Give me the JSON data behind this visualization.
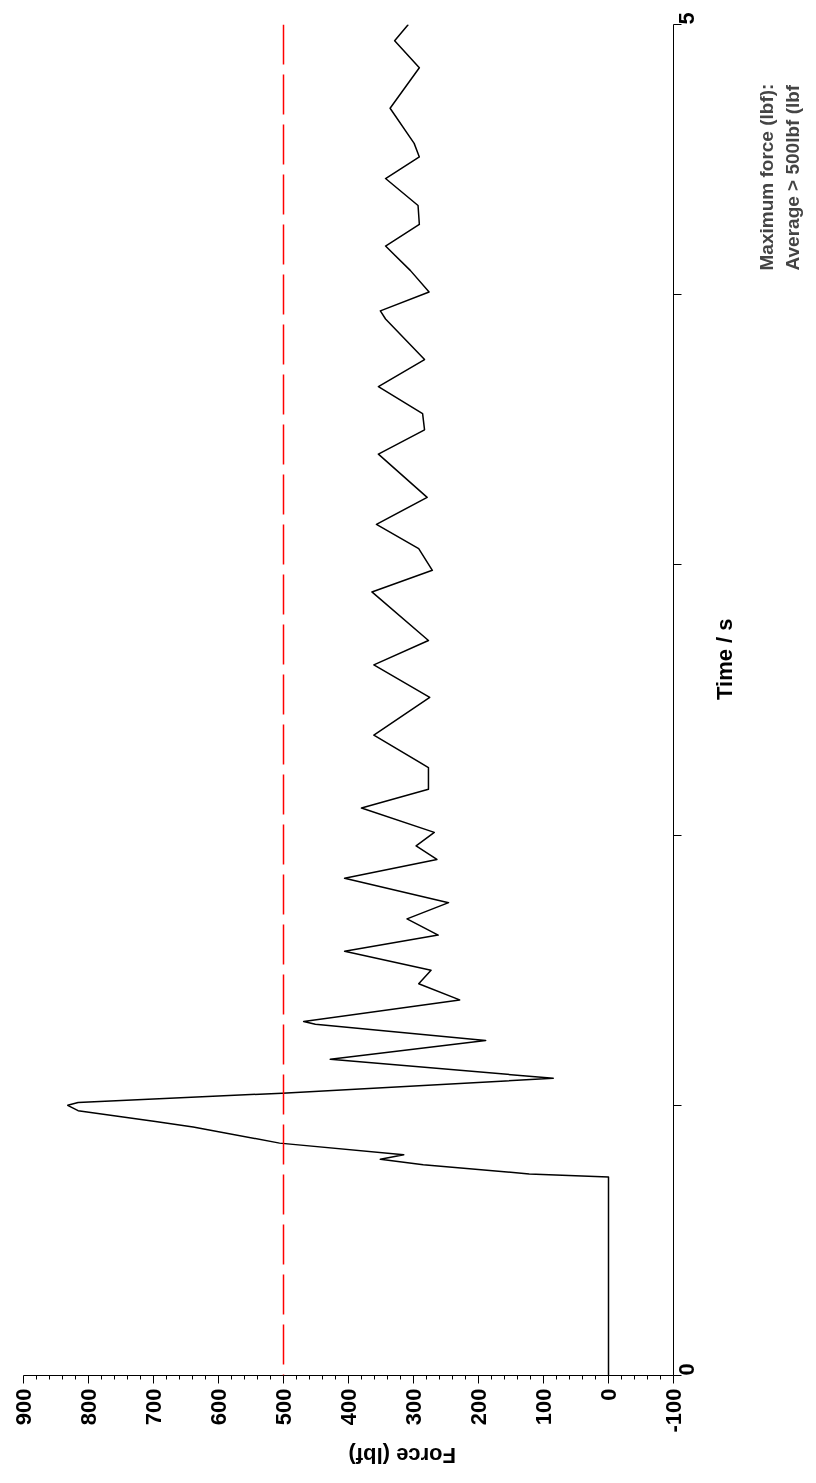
{
  "chart_data": {
    "type": "line",
    "xlabel": "Force (lbf)",
    "ylabel": "Time / s",
    "annotations": [
      "Maximum force (lbf):",
      "Average > 500lbf (lbf"
    ],
    "series": [
      {
        "color": "#000000",
        "x": [
          0,
          0,
          122,
          285,
          351,
          315,
          506,
          639,
          697,
          816,
          832,
          816,
          502,
          85,
          428,
          189,
          451,
          469,
          229,
          292,
          273,
          406,
          262,
          310,
          246,
          406,
          264,
          296,
          268,
          380,
          277,
          277,
          361,
          275,
          361,
          277,
          364,
          271,
          292,
          357,
          279,
          354,
          283,
          286,
          354,
          283,
          343,
          351,
          276,
          305,
          343,
          291,
          293,
          343,
          291,
          299,
          336,
          291,
          329,
          308
        ],
        "values": [
          0,
          0.735,
          0.746,
          0.78,
          0.8,
          0.817,
          0.86,
          0.92,
          0.94,
          0.98,
          1.0,
          1.01,
          1.045,
          1.1,
          1.17,
          1.24,
          1.3,
          1.31,
          1.39,
          1.45,
          1.5,
          1.57,
          1.63,
          1.69,
          1.75,
          1.84,
          1.91,
          1.96,
          2.01,
          2.1,
          2.17,
          2.25,
          2.37,
          2.51,
          2.63,
          2.72,
          2.9,
          2.98,
          3.06,
          3.15,
          3.25,
          3.41,
          3.5,
          3.56,
          3.66,
          3.76,
          3.91,
          3.94,
          4.01,
          4.09,
          4.18,
          4.26,
          4.33,
          4.43,
          4.51,
          4.56,
          4.69,
          4.84,
          4.94,
          5.0
        ]
      }
    ],
    "ylim": [
      0,
      5
    ],
    "yticks": [
      0,
      {
        "value": 1,
        "label": null
      },
      {
        "value": 2,
        "label": null
      },
      {
        "value": 3,
        "label": null
      },
      {
        "value": 4,
        "label": null
      },
      5
    ],
    "xlim": [
      900,
      -100
    ],
    "xticks": [
      -100,
      0,
      100,
      200,
      300,
      400,
      500,
      600,
      700,
      800,
      900
    ],
    "ref_lines": [
      {
        "axis": "x",
        "value": 500,
        "color": "#ff0000",
        "line_style": "dashed"
      }
    ],
    "grid": false,
    "marker": "none",
    "line_style": "solid"
  }
}
